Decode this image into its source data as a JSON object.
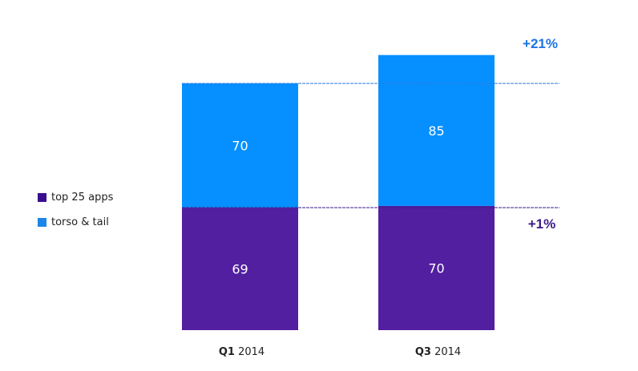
{
  "chart_data": {
    "type": "bar",
    "stacked": true,
    "categories": [
      "Q1 2014",
      "Q3 2014"
    ],
    "category_labels": [
      {
        "quarter": "Q1",
        "year": "2014"
      },
      {
        "quarter": "Q3",
        "year": "2014"
      }
    ],
    "series": [
      {
        "name": "top 25 apps",
        "values": [
          69,
          70
        ],
        "color": "#521fa1"
      },
      {
        "name": "torso & tail",
        "values": [
          70,
          85
        ],
        "color": "#0690ff"
      }
    ],
    "annotations": [
      {
        "text": "+21%",
        "series": "torso & tail",
        "color": "#1d74e6"
      },
      {
        "text": "+1%",
        "series": "top 25 apps",
        "color": "#3b1a86"
      }
    ],
    "legend_position": "left",
    "grid": false,
    "ylim": [
      0,
      155
    ],
    "title": "",
    "xlabel": "",
    "ylabel": ""
  }
}
